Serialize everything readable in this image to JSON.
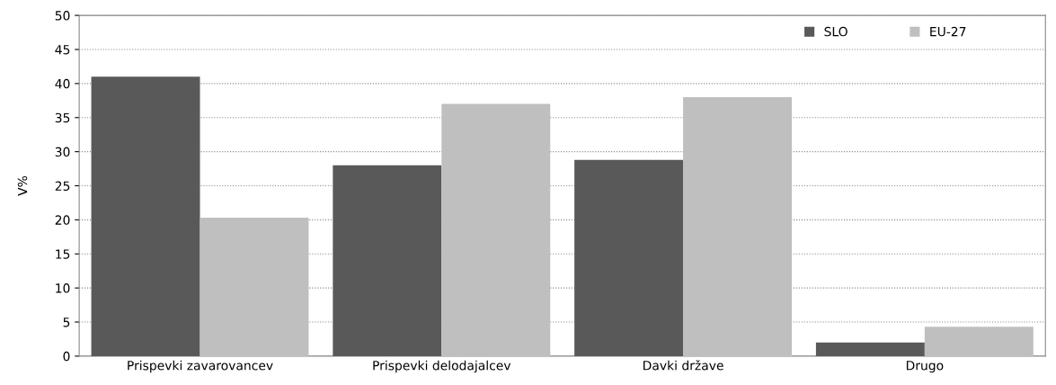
{
  "chart_data": {
    "type": "bar",
    "ylabel": "V%",
    "categories": [
      "Prispevki zavarovancev",
      "Prispevki delodajalcev",
      "Davki države",
      "Drugo"
    ],
    "series": [
      {
        "name": "SLO",
        "color": "#595959",
        "values": [
          41,
          28,
          28.8,
          2
        ]
      },
      {
        "name": "EU-27",
        "color": "#bfbfbf",
        "values": [
          20.3,
          37,
          38,
          4.3
        ]
      }
    ],
    "ylim": [
      0,
      50
    ],
    "yticks": [
      0,
      5,
      10,
      15,
      20,
      25,
      30,
      35,
      40,
      45,
      50
    ],
    "grid": "y",
    "legend": "top right"
  }
}
